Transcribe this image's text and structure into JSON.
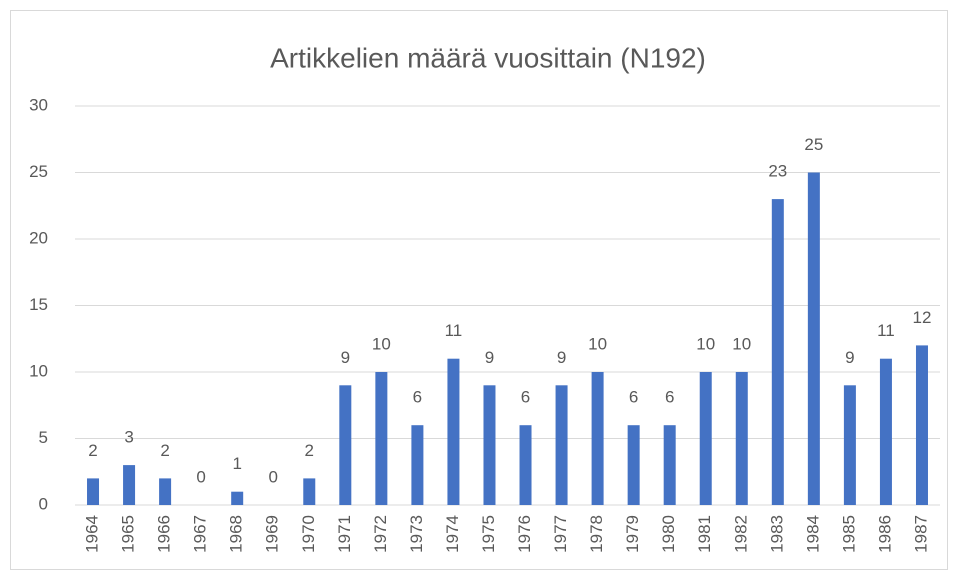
{
  "chart_data": {
    "type": "bar",
    "title": "Artikkelien määrä vuosittain (N192)",
    "categories": [
      "1964",
      "1965",
      "1966",
      "1967",
      "1968",
      "1969",
      "1970",
      "1971",
      "1972",
      "1973",
      "1974",
      "1975",
      "1976",
      "1977",
      "1978",
      "1979",
      "1980",
      "1981",
      "1982",
      "1983",
      "1984",
      "1985",
      "1986",
      "1987"
    ],
    "values": [
      2,
      3,
      2,
      0,
      1,
      0,
      2,
      9,
      10,
      6,
      11,
      9,
      6,
      9,
      10,
      6,
      6,
      10,
      10,
      23,
      25,
      9,
      11,
      12
    ],
    "color": "#4472c4",
    "ylim": [
      0,
      30
    ],
    "yticks": [
      0,
      5,
      10,
      15,
      20,
      25,
      30
    ],
    "grid": true
  }
}
